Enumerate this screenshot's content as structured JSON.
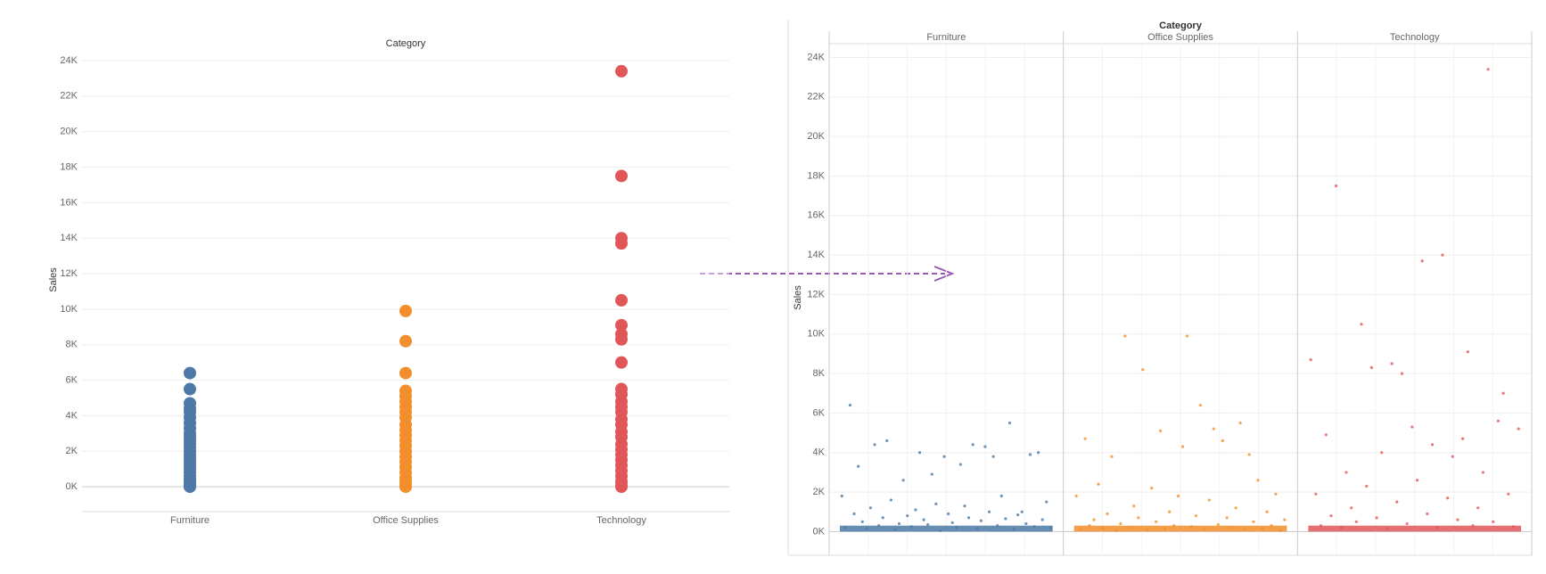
{
  "chart_data": [
    {
      "type": "strip",
      "x_label": "Category",
      "y_label": "Sales",
      "ylim": [
        -1400,
        24400
      ],
      "grid": true,
      "yticks": [
        {
          "value": 0,
          "label": "0K"
        },
        {
          "value": 2000,
          "label": "2K"
        },
        {
          "value": 4000,
          "label": "4K"
        },
        {
          "value": 6000,
          "label": "6K"
        },
        {
          "value": 8000,
          "label": "8K"
        },
        {
          "value": 10000,
          "label": "10K"
        },
        {
          "value": 12000,
          "label": "12K"
        },
        {
          "value": 14000,
          "label": "14K"
        },
        {
          "value": 16000,
          "label": "16K"
        },
        {
          "value": 18000,
          "label": "18K"
        },
        {
          "value": 20000,
          "label": "20K"
        },
        {
          "value": 22000,
          "label": "22K"
        },
        {
          "value": 24000,
          "label": "24K"
        }
      ],
      "series": [
        {
          "name": "Furniture",
          "color": "#4e79a7",
          "values": [
            6400,
            5500,
            4700,
            4400,
            4200,
            3900,
            3600,
            3300,
            3000,
            2800,
            2600,
            2400,
            2200,
            2000,
            1800,
            1600,
            1400,
            1200,
            1000,
            800,
            600,
            400,
            300,
            200,
            100,
            0
          ]
        },
        {
          "name": "Office Supplies",
          "color": "#f28e2b",
          "values": [
            9900,
            8200,
            6400,
            5400,
            5100,
            4800,
            4500,
            4200,
            3900,
            3500,
            3200,
            2900,
            2600,
            2300,
            2000,
            1700,
            1400,
            1100,
            800,
            500,
            300,
            100,
            0
          ]
        },
        {
          "name": "Technology",
          "color": "#e15759",
          "values": [
            23400,
            17500,
            14000,
            13700,
            10500,
            9100,
            8600,
            8300,
            7000,
            5500,
            5200,
            4800,
            4500,
            4200,
            3800,
            3500,
            3100,
            2800,
            2400,
            2100,
            1800,
            1500,
            1200,
            900,
            600,
            300,
            100,
            0
          ]
        }
      ]
    },
    {
      "type": "faceted_scatter",
      "x_label": "Category",
      "y_label": "Sales",
      "ylim": [
        -1200,
        24700
      ],
      "grid": true,
      "yticks": [
        {
          "value": 0,
          "label": "0K"
        },
        {
          "value": 2000,
          "label": "2K"
        },
        {
          "value": 4000,
          "label": "4K"
        },
        {
          "value": 6000,
          "label": "6K"
        },
        {
          "value": 8000,
          "label": "8K"
        },
        {
          "value": 10000,
          "label": "10K"
        },
        {
          "value": 12000,
          "label": "12K"
        },
        {
          "value": 14000,
          "label": "14K"
        },
        {
          "value": 16000,
          "label": "16K"
        },
        {
          "value": 18000,
          "label": "18K"
        },
        {
          "value": 20000,
          "label": "20K"
        },
        {
          "value": 22000,
          "label": "22K"
        },
        {
          "value": 24000,
          "label": "24K"
        }
      ],
      "series": [
        {
          "name": "Furniture",
          "color": "#4e79a7",
          "values": [
            1800,
            200,
            6400,
            900,
            3300,
            500,
            150,
            1200,
            4400,
            300,
            700,
            4600,
            1600,
            100,
            400,
            2600,
            800,
            250,
            1100,
            4000,
            600,
            350,
            2900,
            1400,
            50,
            3800,
            900,
            450,
            200,
            3400,
            1300,
            700,
            4400,
            150,
            550,
            4300,
            1000,
            3800,
            300,
            1800,
            650,
            5500,
            120,
            850,
            1000,
            400,
            3900,
            250,
            4000,
            600,
            1500,
            200
          ]
        },
        {
          "name": "Office Supplies",
          "color": "#f28e2b",
          "values": [
            1800,
            100,
            4700,
            300,
            600,
            2400,
            150,
            900,
            3800,
            50,
            400,
            9900,
            200,
            1300,
            700,
            8200,
            100,
            2200,
            500,
            5100,
            150,
            1000,
            300,
            1800,
            4300,
            9900,
            250,
            800,
            6400,
            100,
            1600,
            5200,
            350,
            4600,
            700,
            200,
            1200,
            5500,
            100,
            3900,
            500,
            2600,
            150,
            1000,
            300,
            1900,
            50,
            600
          ]
        },
        {
          "name": "Technology",
          "color": "#e15759",
          "values": [
            8700,
            1900,
            300,
            4900,
            800,
            17500,
            200,
            3000,
            1200,
            500,
            10500,
            2300,
            8300,
            700,
            4000,
            150,
            8500,
            1500,
            8000,
            400,
            5300,
            2600,
            13700,
            900,
            4400,
            200,
            14000,
            1700,
            3800,
            600,
            4700,
            9100,
            300,
            1200,
            3000,
            23400,
            500,
            5600,
            7000,
            1900,
            250,
            5200
          ]
        }
      ]
    }
  ]
}
